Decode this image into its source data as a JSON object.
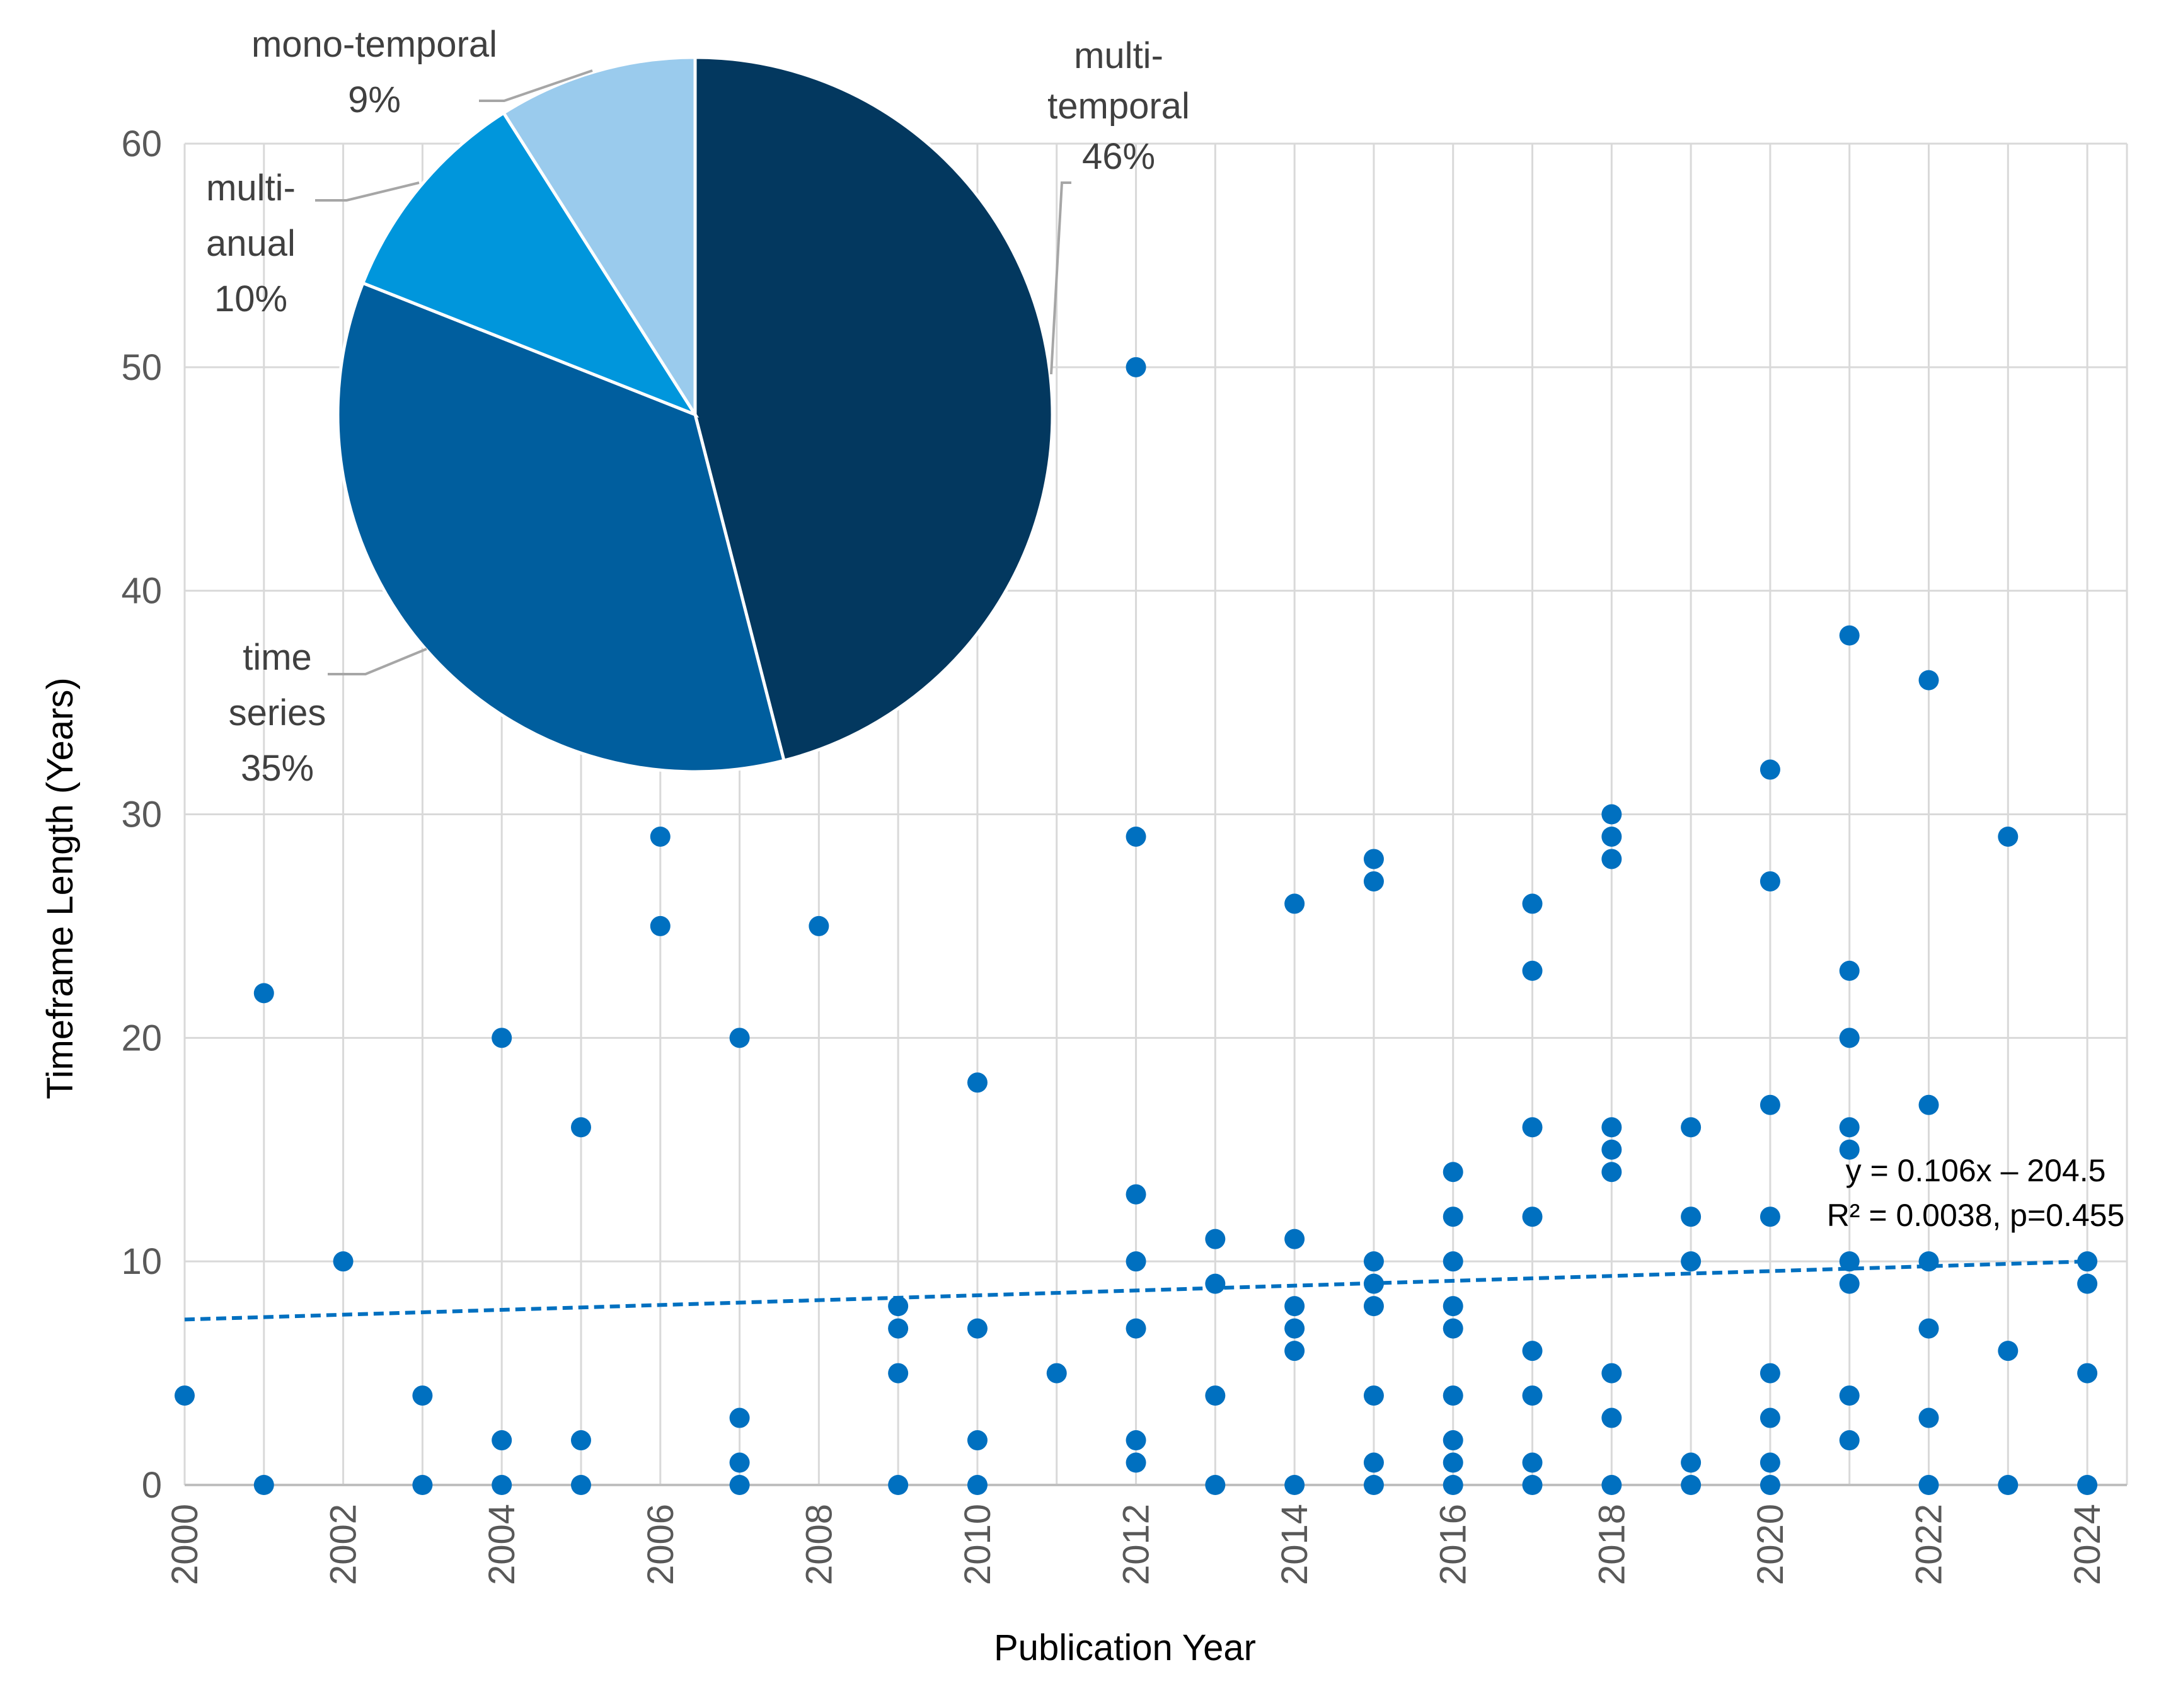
{
  "chart_data": [
    {
      "type": "scatter",
      "xlabel": "Publication Year",
      "ylabel": "Timeframe Length (Years)",
      "xlim": [
        2000,
        2024.5
      ],
      "ylim": [
        0,
        60
      ],
      "x_ticks": [
        "2000",
        "2002",
        "2004",
        "2006",
        "2008",
        "2010",
        "2012",
        "2014",
        "2016",
        "2018",
        "2020",
        "2022",
        "2024"
      ],
      "y_ticks": [
        "0",
        "10",
        "20",
        "30",
        "40",
        "50",
        "60"
      ],
      "grid": true,
      "colors": {
        "point": "#0070C0",
        "grid": "#D9D9D9",
        "trend": "#0070C0"
      },
      "points": [
        [
          2000,
          4
        ],
        [
          2001,
          22
        ],
        [
          2001,
          0
        ],
        [
          2002,
          10
        ],
        [
          2003,
          4
        ],
        [
          2003,
          0
        ],
        [
          2004,
          20
        ],
        [
          2004,
          2
        ],
        [
          2004,
          0
        ],
        [
          2005,
          16
        ],
        [
          2005,
          2
        ],
        [
          2005,
          0
        ],
        [
          2006,
          29
        ],
        [
          2006,
          25
        ],
        [
          2007,
          20
        ],
        [
          2007,
          3
        ],
        [
          2007,
          1
        ],
        [
          2007,
          0
        ],
        [
          2008,
          25
        ],
        [
          2009,
          8
        ],
        [
          2009,
          7
        ],
        [
          2009,
          5
        ],
        [
          2009,
          0
        ],
        [
          2010,
          18
        ],
        [
          2010,
          7
        ],
        [
          2010,
          2
        ],
        [
          2010,
          0
        ],
        [
          2011,
          5
        ],
        [
          2012,
          50
        ],
        [
          2012,
          29
        ],
        [
          2012,
          13
        ],
        [
          2012,
          10
        ],
        [
          2012,
          7
        ],
        [
          2012,
          2
        ],
        [
          2012,
          1
        ],
        [
          2013,
          11
        ],
        [
          2013,
          9
        ],
        [
          2013,
          4
        ],
        [
          2013,
          0
        ],
        [
          2014,
          26
        ],
        [
          2014,
          11
        ],
        [
          2014,
          8
        ],
        [
          2014,
          7
        ],
        [
          2014,
          6
        ],
        [
          2014,
          0
        ],
        [
          2015,
          28
        ],
        [
          2015,
          27
        ],
        [
          2015,
          10
        ],
        [
          2015,
          9
        ],
        [
          2015,
          8
        ],
        [
          2015,
          4
        ],
        [
          2015,
          1
        ],
        [
          2015,
          0
        ],
        [
          2016,
          14
        ],
        [
          2016,
          12
        ],
        [
          2016,
          10
        ],
        [
          2016,
          8
        ],
        [
          2016,
          7
        ],
        [
          2016,
          4
        ],
        [
          2016,
          2
        ],
        [
          2016,
          1
        ],
        [
          2016,
          0
        ],
        [
          2017,
          26
        ],
        [
          2017,
          23
        ],
        [
          2017,
          16
        ],
        [
          2017,
          12
        ],
        [
          2017,
          6
        ],
        [
          2017,
          4
        ],
        [
          2017,
          1
        ],
        [
          2017,
          0
        ],
        [
          2018,
          30
        ],
        [
          2018,
          29
        ],
        [
          2018,
          28
        ],
        [
          2018,
          16
        ],
        [
          2018,
          15
        ],
        [
          2018,
          14
        ],
        [
          2018,
          5
        ],
        [
          2018,
          3
        ],
        [
          2018,
          0
        ],
        [
          2019,
          16
        ],
        [
          2019,
          12
        ],
        [
          2019,
          10
        ],
        [
          2019,
          1
        ],
        [
          2019,
          0
        ],
        [
          2020,
          32
        ],
        [
          2020,
          27
        ],
        [
          2020,
          17
        ],
        [
          2020,
          12
        ],
        [
          2020,
          5
        ],
        [
          2020,
          3
        ],
        [
          2020,
          1
        ],
        [
          2020,
          0
        ],
        [
          2021,
          38
        ],
        [
          2021,
          23
        ],
        [
          2021,
          20
        ],
        [
          2021,
          16
        ],
        [
          2021,
          15
        ],
        [
          2021,
          10
        ],
        [
          2021,
          9
        ],
        [
          2021,
          4
        ],
        [
          2021,
          2
        ],
        [
          2022,
          36
        ],
        [
          2022,
          17
        ],
        [
          2022,
          10
        ],
        [
          2022,
          7
        ],
        [
          2022,
          3
        ],
        [
          2022,
          0
        ],
        [
          2023,
          29
        ],
        [
          2023,
          6
        ],
        [
          2023,
          0
        ],
        [
          2024,
          10
        ],
        [
          2024,
          9
        ],
        [
          2024,
          5
        ],
        [
          2024,
          0
        ]
      ],
      "trendline": {
        "x_range": [
          2000,
          2024
        ],
        "y_range": [
          7.4,
          10.0
        ],
        "equation": "y = 0.106x – 204.5",
        "stats": "R² = 0.0038, p=0.455"
      }
    },
    {
      "type": "pie",
      "slices": [
        {
          "name": "multi-temporal",
          "label_lines": [
            "multi-",
            "temporal",
            "46%"
          ],
          "value": 46,
          "color": "#03385F"
        },
        {
          "name": "time series",
          "label_lines": [
            "time",
            "series",
            "35%"
          ],
          "value": 35,
          "color": "#005E9E"
        },
        {
          "name": "multi-anual",
          "label_lines": [
            "multi-",
            "anual",
            "10%"
          ],
          "value": 10,
          "color": "#0096DC"
        },
        {
          "name": "mono-temporal",
          "label_lines": [
            "mono-temporal",
            "9%"
          ],
          "value": 9,
          "color": "#9ACBED"
        }
      ],
      "leader_color": "#A6A6A6"
    }
  ]
}
